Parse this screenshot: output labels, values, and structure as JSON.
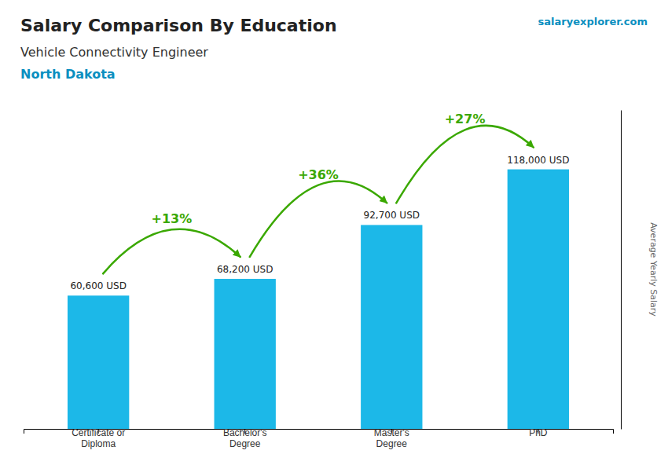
{
  "chart_data": {
    "type": "bar",
    "title": "Salary Comparison By Education",
    "subtitle": "Vehicle Connectivity Engineer",
    "annotations": [
      "North Dakota",
      "salaryexplorer.com",
      "+13%",
      "+36%",
      "+27%"
    ],
    "ylabel": "Average Yearly Salary",
    "categories": [
      "Certificate or\nDiploma",
      "Bachelor's\nDegree",
      "Master's\nDegree",
      "PhD"
    ],
    "values": [
      60600,
      68200,
      92700,
      118000
    ],
    "value_labels": [
      "60,600 USD",
      "68,200 USD",
      "92,700 USD",
      "118,000 USD"
    ],
    "data_labels": true,
    "color": "#1cb8e8",
    "ylim": [
      0,
      145000
    ],
    "tick_labels": "x",
    "grid": false
  }
}
